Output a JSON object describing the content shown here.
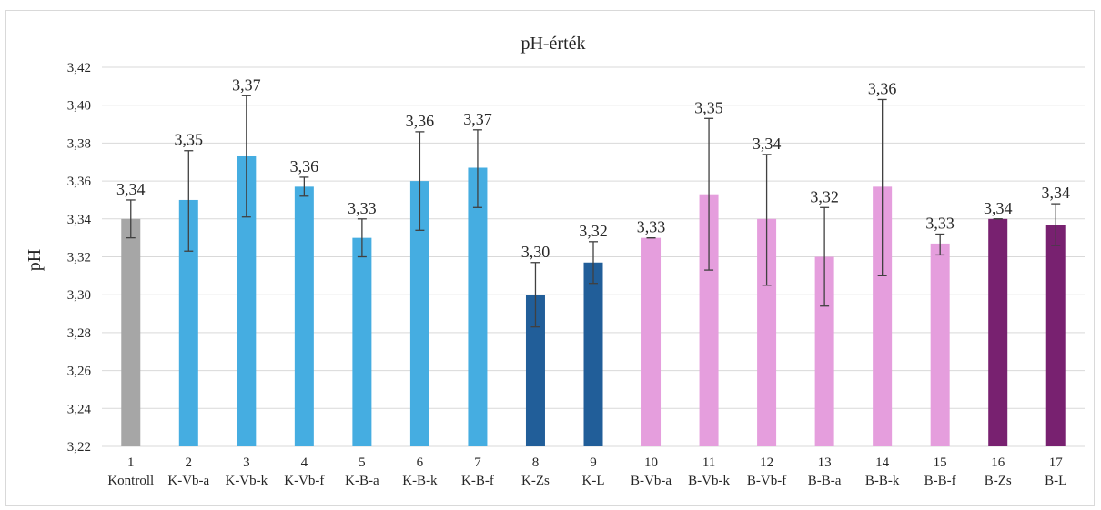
{
  "chart_data": {
    "type": "bar",
    "title": "pH-érték",
    "xlabel": "",
    "ylabel": "pH",
    "ylim": [
      3.22,
      3.42
    ],
    "yticks": [
      "3,22",
      "3,24",
      "3,26",
      "3,28",
      "3,30",
      "3,32",
      "3,34",
      "3,36",
      "3,38",
      "3,40",
      "3,42"
    ],
    "grid": true,
    "legend": "none",
    "categories": [
      {
        "num": "1",
        "name": "Kontroll"
      },
      {
        "num": "2",
        "name": "K-Vb-a"
      },
      {
        "num": "3",
        "name": "K-Vb-k"
      },
      {
        "num": "4",
        "name": "K-Vb-f"
      },
      {
        "num": "5",
        "name": "K-B-a"
      },
      {
        "num": "6",
        "name": "K-B-k"
      },
      {
        "num": "7",
        "name": "K-B-f"
      },
      {
        "num": "8",
        "name": "K-Zs"
      },
      {
        "num": "9",
        "name": "K-L"
      },
      {
        "num": "10",
        "name": "B-Vb-a"
      },
      {
        "num": "11",
        "name": "B-Vb-k"
      },
      {
        "num": "12",
        "name": "B-Vb-f"
      },
      {
        "num": "13",
        "name": "B-B-a"
      },
      {
        "num": "14",
        "name": "B-B-k"
      },
      {
        "num": "15",
        "name": "B-B-f"
      },
      {
        "num": "16",
        "name": "B-Zs"
      },
      {
        "num": "17",
        "name": "B-L"
      }
    ],
    "values": [
      3.34,
      3.35,
      3.373,
      3.357,
      3.33,
      3.36,
      3.367,
      3.3,
      3.317,
      3.33,
      3.353,
      3.34,
      3.32,
      3.357,
      3.327,
      3.34,
      3.337
    ],
    "error_upper": [
      3.35,
      3.376,
      3.405,
      3.362,
      3.34,
      3.386,
      3.387,
      3.317,
      3.328,
      3.33,
      3.393,
      3.374,
      3.346,
      3.403,
      3.332,
      3.34,
      3.348
    ],
    "error_lower": [
      3.33,
      3.323,
      3.341,
      3.352,
      3.32,
      3.334,
      3.346,
      3.283,
      3.306,
      3.33,
      3.313,
      3.305,
      3.294,
      3.31,
      3.321,
      3.34,
      3.326
    ],
    "data_labels": [
      "3,34",
      "3,35",
      "3,37",
      "3,36",
      "3,33",
      "3,36",
      "3,37",
      "3,30",
      "3,32",
      "3,33",
      "3,35",
      "3,34",
      "3,32",
      "3,36",
      "3,33",
      "3,34",
      "3,34"
    ],
    "colors": [
      "#a6a6a6",
      "#45ade1",
      "#45ade1",
      "#45ade1",
      "#45ade1",
      "#45ade1",
      "#45ade1",
      "#215e99",
      "#215e99",
      "#e59edd",
      "#e59edd",
      "#e59edd",
      "#e59edd",
      "#e59edd",
      "#e59edd",
      "#782170",
      "#782170"
    ],
    "grid_color": "#d9d9d9",
    "error_bar_color": "#404040"
  }
}
